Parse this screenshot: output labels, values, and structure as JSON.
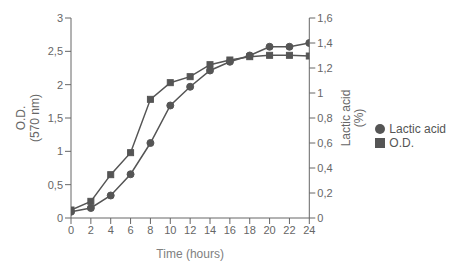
{
  "chart_data": {
    "type": "line",
    "xlabel": "Time (hours)",
    "ylabel": "O.D.\n(570 nm)",
    "y2label": "Lactic acid\n(%)",
    "x": [
      0,
      2,
      4,
      6,
      8,
      10,
      12,
      14,
      16,
      18,
      20,
      22,
      24
    ],
    "series": [
      {
        "name": "O.D.",
        "color": "#555555",
        "marker": "square",
        "values": [
          0.12,
          0.25,
          0.65,
          0.98,
          1.78,
          2.03,
          2.12,
          2.3,
          2.37,
          2.42,
          2.44,
          2.44,
          2.43
        ]
      },
      {
        "name": "Lactic acid",
        "color": "#555555",
        "marker": "circle",
        "axis": "y2",
        "values": [
          0.05,
          0.08,
          0.18,
          0.35,
          0.6,
          0.9,
          1.05,
          1.18,
          1.25,
          1.3,
          1.37,
          1.37,
          1.4
        ]
      }
    ],
    "xlim": [
      0,
      24
    ],
    "xticks": [
      0,
      2,
      4,
      6,
      8,
      10,
      12,
      14,
      16,
      18,
      20,
      22,
      24
    ],
    "ylim": [
      0,
      3
    ],
    "yticks": [
      0,
      {
        "value": 0.5,
        "label": "0,5"
      },
      1,
      {
        "value": 1.5,
        "label": "1,5"
      },
      2,
      {
        "value": 2.5,
        "label": "2,5"
      },
      3
    ],
    "y2lim": [
      0,
      1.6
    ],
    "y2ticks": [
      0,
      {
        "value": 0.2,
        "label": "0,2"
      },
      {
        "value": 0.4,
        "label": "0,4"
      },
      {
        "value": 0.6,
        "label": "0,6"
      },
      {
        "value": 0.8,
        "label": "0,8"
      },
      1,
      {
        "value": 1.2,
        "label": "1,2"
      },
      {
        "value": 1.4,
        "label": "1,4"
      },
      {
        "value": 1.6,
        "label": "1,6"
      }
    ],
    "legend": "right",
    "grid": false
  }
}
